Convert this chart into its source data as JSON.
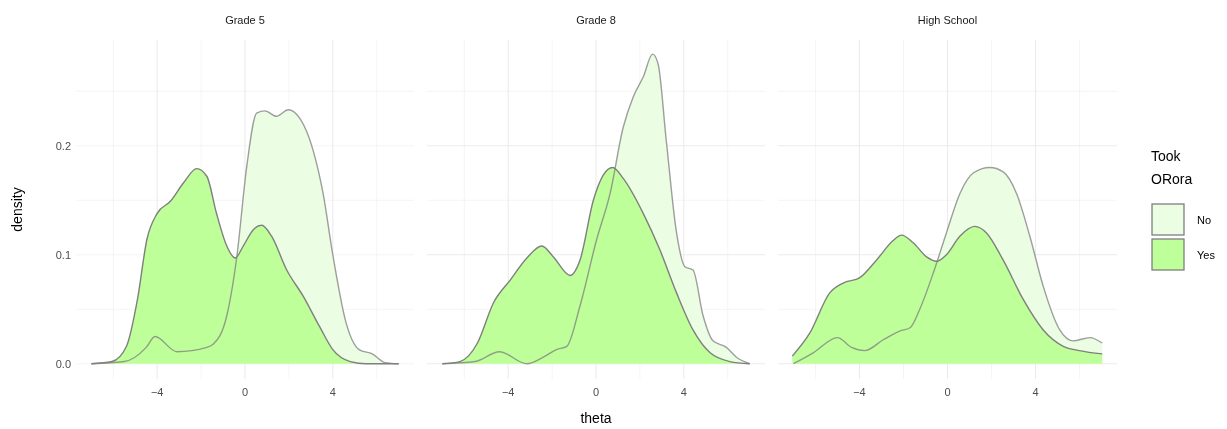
{
  "chart_data": [
    {
      "type": "area",
      "title": "Grade 5",
      "ylabel": "density",
      "xlim": [
        -7.7,
        7.7
      ],
      "ylim": [
        -0.014,
        0.297
      ],
      "xticks": [
        {
          "value": -6,
          "label": null
        },
        -4,
        {
          "value": -2,
          "label": null
        },
        0,
        {
          "value": 2,
          "label": null
        },
        4,
        {
          "value": 6,
          "label": null
        }
      ],
      "yticks": [
        {
          "value": 0,
          "label": "0.0"
        },
        {
          "value": 0.05,
          "label": null
        },
        {
          "value": 0.1,
          "label": "0.1"
        },
        {
          "value": 0.15,
          "label": null
        },
        {
          "value": 0.2,
          "label": "0.2"
        },
        {
          "value": 0.25,
          "label": null
        }
      ],
      "grid": true,
      "legend": false,
      "series": [
        {
          "color": "#ebfde3",
          "x": [
            -7,
            -5.5,
            -4.5,
            -4.1,
            -3.1,
            -1.74,
            -1.44,
            -0.83,
            -0.38,
            0.08,
            0.53,
            0.91,
            1.44,
            1.97,
            2.5,
            3.1,
            3.56,
            4.0,
            4.6,
            5.2,
            5.8,
            6.4,
            7
          ],
          "values": [
            0,
            0.002,
            0.015,
            0.025,
            0.011,
            0.015,
            0.018,
            0.044,
            0.097,
            0.181,
            0.23,
            0.232,
            0.227,
            0.233,
            0.225,
            0.196,
            0.156,
            0.1,
            0.038,
            0.013,
            0.009,
            0.001,
            0
          ]
        },
        {
          "color": "#bfff99",
          "x": [
            -7,
            -6.06,
            -5.4,
            -4.9,
            -4.47,
            -4.0,
            -3.4,
            -2.8,
            -2.2,
            -1.74,
            -1.3,
            -0.83,
            -0.45,
            -0.08,
            0.38,
            0.76,
            1.21,
            1.9,
            2.65,
            3.4,
            4.0,
            4.8,
            5.5,
            7
          ],
          "values": [
            0,
            0.002,
            0.016,
            0.059,
            0.114,
            0.138,
            0.149,
            0.166,
            0.179,
            0.172,
            0.138,
            0.108,
            0.097,
            0.108,
            0.123,
            0.127,
            0.117,
            0.086,
            0.062,
            0.034,
            0.013,
            0.002,
            0,
            0
          ]
        }
      ]
    },
    {
      "type": "area",
      "title": "Grade 8",
      "xlabel": "theta",
      "xlim": [
        -7.7,
        7.7
      ],
      "ylim": [
        -0.014,
        0.297
      ],
      "xticks": [
        {
          "value": -6,
          "label": null
        },
        -4,
        {
          "value": -2,
          "label": null
        },
        0,
        {
          "value": 2,
          "label": null
        },
        4,
        {
          "value": 6,
          "label": null
        }
      ],
      "yticks": [
        0.0,
        {
          "value": 0.05,
          "label": null
        },
        0.1,
        {
          "value": 0.15,
          "label": null
        },
        0.2,
        {
          "value": 0.25,
          "label": null
        }
      ],
      "grid": true,
      "legend": false,
      "tick_labels": "x",
      "series": [
        {
          "color": "#ebfde3",
          "x": [
            -7,
            -5.5,
            -4.4,
            -3.15,
            -2.4,
            -1.8,
            -1.33,
            -0.73,
            0.03,
            0.64,
            1.24,
            1.7,
            2.15,
            2.58,
            2.83,
            3.2,
            3.67,
            4.05,
            4.42,
            4.88,
            5.33,
            5.94,
            6.4,
            7
          ],
          "values": [
            0,
            0.002,
            0.011,
            0,
            0.006,
            0.013,
            0.016,
            0.053,
            0.114,
            0.156,
            0.217,
            0.245,
            0.263,
            0.284,
            0.275,
            0.205,
            0.12,
            0.089,
            0.086,
            0.044,
            0.021,
            0.015,
            0.006,
            0
          ]
        },
        {
          "color": "#bfff99",
          "x": [
            -7,
            -6.2,
            -5.4,
            -4.67,
            -3.9,
            -3.15,
            -2.47,
            -1.94,
            -1.18,
            -0.73,
            -0.12,
            0.33,
            0.76,
            1.24,
            2.15,
            2.9,
            3.67,
            4.42,
            5.2,
            6.1,
            7
          ],
          "values": [
            0,
            0.002,
            0.019,
            0.056,
            0.077,
            0.097,
            0.108,
            0.098,
            0.081,
            0.095,
            0.15,
            0.173,
            0.18,
            0.17,
            0.138,
            0.105,
            0.065,
            0.031,
            0.01,
            0.002,
            0
          ]
        }
      ]
    },
    {
      "type": "area",
      "title": "High School",
      "legend_title": "Took\nORora",
      "xlim": [
        -7.7,
        7.7
      ],
      "ylim": [
        -0.014,
        0.297
      ],
      "xticks": [
        {
          "value": -6,
          "label": null
        },
        -4,
        {
          "value": -2,
          "label": null
        },
        0,
        {
          "value": 2,
          "label": null
        },
        4,
        {
          "value": 6,
          "label": null
        }
      ],
      "yticks": [
        0.0,
        {
          "value": 0.05,
          "label": null
        },
        0.1,
        {
          "value": 0.15,
          "label": null
        },
        0.2,
        {
          "value": 0.25,
          "label": null
        }
      ],
      "grid": true,
      "legend": "right",
      "tick_labels": "x",
      "series": [
        {
          "name": "No",
          "color": "#ebfde3",
          "x": [
            -7,
            -6.1,
            -5.0,
            -4.36,
            -3.76,
            -2.92,
            -2.17,
            -1.7,
            -1.26,
            -0.65,
            -0.05,
            0.56,
            1.17,
            1.92,
            2.53,
            3.14,
            3.74,
            4.35,
            5.1,
            5.7,
            6.47,
            7.03
          ],
          "values": [
            0,
            0.01,
            0.024,
            0.015,
            0.012,
            0.022,
            0.03,
            0.033,
            0.05,
            0.083,
            0.12,
            0.156,
            0.175,
            0.18,
            0.176,
            0.156,
            0.117,
            0.071,
            0.031,
            0.021,
            0.024,
            0.019
          ]
        },
        {
          "name": "Yes",
          "color": "#bfff99",
          "x": [
            -7.05,
            -6.26,
            -5.35,
            -4.74,
            -3.98,
            -3.23,
            -2.47,
            -2.09,
            -1.56,
            -0.95,
            -0.5,
            -0.05,
            0.56,
            1.24,
            1.77,
            2.53,
            3.44,
            4.35,
            5.26,
            6.0,
            7.03
          ],
          "values": [
            0.007,
            0.028,
            0.065,
            0.074,
            0.079,
            0.095,
            0.113,
            0.118,
            0.111,
            0.098,
            0.094,
            0.1,
            0.117,
            0.126,
            0.12,
            0.095,
            0.059,
            0.031,
            0.016,
            0.012,
            0.009
          ]
        }
      ]
    }
  ]
}
